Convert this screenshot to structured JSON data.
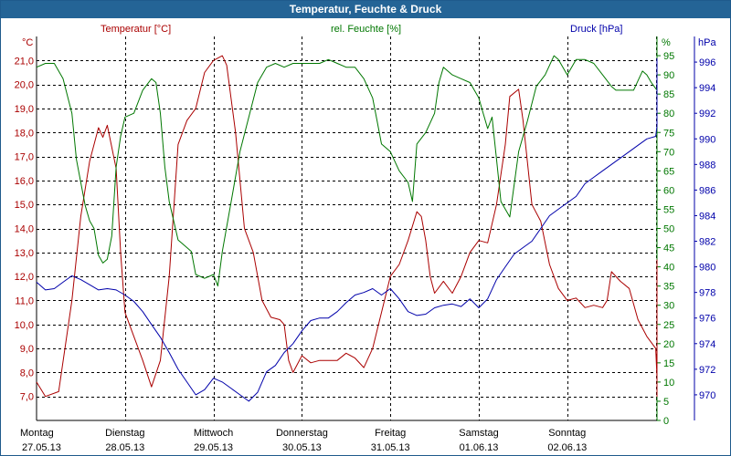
{
  "window": {
    "title": "Temperatur, Feuchte & Druck"
  },
  "chart_data": {
    "type": "line",
    "title": "Temperatur, Feuchte & Druck",
    "grid": true,
    "colors": {
      "temperature": "#aa0000",
      "humidity": "#007700",
      "pressure": "#0000aa",
      "grid": "#000000"
    },
    "days": [
      {
        "name": "Montag",
        "date": "27.05.13"
      },
      {
        "name": "Dienstag",
        "date": "28.05.13"
      },
      {
        "name": "Mittwoch",
        "date": "29.05.13"
      },
      {
        "name": "Donnerstag",
        "date": "30.05.13"
      },
      {
        "name": "Freitag",
        "date": "31.05.13"
      },
      {
        "name": "Samstag",
        "date": "01.06.13"
      },
      {
        "name": "Sonntag",
        "date": "02.06.13"
      }
    ],
    "axes": {
      "temperature": {
        "label": "Temperatur [°C]",
        "unit": "°C",
        "range": [
          6.0,
          22.0
        ],
        "ticks": [
          "7,0",
          "8,0",
          "9,0",
          "10,0",
          "11,0",
          "12,0",
          "13,0",
          "14,0",
          "15,0",
          "16,0",
          "17,0",
          "18,0",
          "19,0",
          "20,0",
          "21,0"
        ]
      },
      "humidity": {
        "label": "rel. Feuchte [%]",
        "unit": "%",
        "range": [
          0,
          100
        ],
        "ticks": [
          "0",
          "5",
          "10",
          "15",
          "20",
          "25",
          "30",
          "35",
          "40",
          "45",
          "50",
          "55",
          "60",
          "65",
          "70",
          "75",
          "80",
          "85",
          "90",
          "95"
        ]
      },
      "pressure": {
        "label": "Druck [hPa]",
        "unit": "hPa",
        "range": [
          968,
          998
        ],
        "ticks": [
          "970",
          "972",
          "974",
          "976",
          "978",
          "980",
          "982",
          "984",
          "986",
          "988",
          "990",
          "992",
          "994",
          "996"
        ]
      }
    },
    "series": [
      {
        "name": "Temperatur [°C]",
        "axis": "temperature",
        "points": [
          [
            0.0,
            7.6
          ],
          [
            0.1,
            7.0
          ],
          [
            0.25,
            7.2
          ],
          [
            0.4,
            11.0
          ],
          [
            0.5,
            14.5
          ],
          [
            0.6,
            16.8
          ],
          [
            0.7,
            18.2
          ],
          [
            0.75,
            17.8
          ],
          [
            0.8,
            18.3
          ],
          [
            0.9,
            16.5
          ],
          [
            0.95,
            13.0
          ],
          [
            1.0,
            10.5
          ],
          [
            1.1,
            9.5
          ],
          [
            1.2,
            8.5
          ],
          [
            1.3,
            7.4
          ],
          [
            1.4,
            8.5
          ],
          [
            1.5,
            12.0
          ],
          [
            1.6,
            17.5
          ],
          [
            1.7,
            18.5
          ],
          [
            1.8,
            19.0
          ],
          [
            1.9,
            20.5
          ],
          [
            2.0,
            21.0
          ],
          [
            2.1,
            21.2
          ],
          [
            2.15,
            20.8
          ],
          [
            2.25,
            18.0
          ],
          [
            2.35,
            14.0
          ],
          [
            2.45,
            13.0
          ],
          [
            2.55,
            11.0
          ],
          [
            2.65,
            10.3
          ],
          [
            2.75,
            10.2
          ],
          [
            2.8,
            10.0
          ],
          [
            2.85,
            8.5
          ],
          [
            2.9,
            8.0
          ],
          [
            3.0,
            8.7
          ],
          [
            3.1,
            8.4
          ],
          [
            3.2,
            8.5
          ],
          [
            3.4,
            8.5
          ],
          [
            3.5,
            8.8
          ],
          [
            3.6,
            8.6
          ],
          [
            3.7,
            8.2
          ],
          [
            3.8,
            9.0
          ],
          [
            3.9,
            10.5
          ],
          [
            4.0,
            12.0
          ],
          [
            4.1,
            12.5
          ],
          [
            4.2,
            13.5
          ],
          [
            4.3,
            14.7
          ],
          [
            4.35,
            14.5
          ],
          [
            4.4,
            13.5
          ],
          [
            4.45,
            12.0
          ],
          [
            4.5,
            11.3
          ],
          [
            4.6,
            11.8
          ],
          [
            4.7,
            11.3
          ],
          [
            4.8,
            12.0
          ],
          [
            4.9,
            13.0
          ],
          [
            5.0,
            13.5
          ],
          [
            5.1,
            13.4
          ],
          [
            5.2,
            15.0
          ],
          [
            5.3,
            17.5
          ],
          [
            5.35,
            19.5
          ],
          [
            5.45,
            19.8
          ],
          [
            5.5,
            18.5
          ],
          [
            5.6,
            15.0
          ],
          [
            5.7,
            14.3
          ],
          [
            5.8,
            12.5
          ],
          [
            5.9,
            11.5
          ],
          [
            6.0,
            11.0
          ],
          [
            6.1,
            11.1
          ],
          [
            6.2,
            10.7
          ],
          [
            6.3,
            10.8
          ],
          [
            6.4,
            10.7
          ],
          [
            6.45,
            11.0
          ],
          [
            6.5,
            12.2
          ],
          [
            6.6,
            11.8
          ],
          [
            6.7,
            11.5
          ],
          [
            6.8,
            10.2
          ],
          [
            6.9,
            9.5
          ],
          [
            7.0,
            9.0
          ],
          [
            7.1,
            7.8
          ],
          [
            7.2,
            7.0
          ],
          [
            7.3,
            7.2
          ],
          [
            7.4,
            8.5
          ],
          [
            7.5,
            10.5
          ],
          [
            7.6,
            14.0
          ],
          [
            7.7,
            16.0
          ],
          [
            7.8,
            16.7
          ],
          [
            7.9,
            15.5
          ],
          [
            8.0,
            13.5
          ],
          [
            8.1,
            11.5
          ],
          [
            8.2,
            10.0
          ]
        ]
      },
      {
        "name": "rel. Feuchte [%]",
        "axis": "humidity",
        "points": [
          [
            0.0,
            92
          ],
          [
            0.1,
            93
          ],
          [
            0.2,
            93
          ],
          [
            0.3,
            89
          ],
          [
            0.4,
            80
          ],
          [
            0.45,
            68
          ],
          [
            0.5,
            62
          ],
          [
            0.55,
            56
          ],
          [
            0.6,
            52
          ],
          [
            0.65,
            50
          ],
          [
            0.7,
            43
          ],
          [
            0.75,
            41
          ],
          [
            0.8,
            42
          ],
          [
            0.85,
            48
          ],
          [
            0.9,
            66
          ],
          [
            0.95,
            74
          ],
          [
            1.0,
            79
          ],
          [
            1.1,
            80
          ],
          [
            1.2,
            86
          ],
          [
            1.3,
            89
          ],
          [
            1.35,
            88
          ],
          [
            1.4,
            80
          ],
          [
            1.45,
            66
          ],
          [
            1.5,
            57
          ],
          [
            1.6,
            47
          ],
          [
            1.7,
            45
          ],
          [
            1.75,
            44
          ],
          [
            1.8,
            38
          ],
          [
            1.9,
            37
          ],
          [
            2.0,
            38
          ],
          [
            2.05,
            35
          ],
          [
            2.1,
            44
          ],
          [
            2.2,
            57
          ],
          [
            2.3,
            70
          ],
          [
            2.4,
            79
          ],
          [
            2.5,
            88
          ],
          [
            2.6,
            92
          ],
          [
            2.7,
            93
          ],
          [
            2.8,
            92
          ],
          [
            2.9,
            93
          ],
          [
            3.0,
            93
          ],
          [
            3.1,
            93
          ],
          [
            3.2,
            93
          ],
          [
            3.3,
            94
          ],
          [
            3.4,
            93
          ],
          [
            3.5,
            92
          ],
          [
            3.6,
            92
          ],
          [
            3.7,
            89
          ],
          [
            3.8,
            84
          ],
          [
            3.85,
            78
          ],
          [
            3.9,
            72
          ],
          [
            4.0,
            70
          ],
          [
            4.1,
            65
          ],
          [
            4.2,
            62
          ],
          [
            4.25,
            57
          ],
          [
            4.3,
            72
          ],
          [
            4.4,
            75
          ],
          [
            4.5,
            80
          ],
          [
            4.55,
            88
          ],
          [
            4.6,
            92
          ],
          [
            4.7,
            90
          ],
          [
            4.8,
            89
          ],
          [
            4.9,
            88
          ],
          [
            5.0,
            84
          ],
          [
            5.05,
            80
          ],
          [
            5.1,
            76
          ],
          [
            5.15,
            79
          ],
          [
            5.2,
            68
          ],
          [
            5.25,
            57
          ],
          [
            5.35,
            53
          ],
          [
            5.45,
            70
          ],
          [
            5.55,
            78
          ],
          [
            5.65,
            87
          ],
          [
            5.75,
            90
          ],
          [
            5.85,
            95
          ],
          [
            5.9,
            94
          ],
          [
            6.0,
            90
          ],
          [
            6.1,
            94
          ],
          [
            6.2,
            94
          ],
          [
            6.3,
            93
          ],
          [
            6.4,
            90
          ],
          [
            6.5,
            87
          ],
          [
            6.55,
            86
          ],
          [
            6.65,
            86
          ],
          [
            6.75,
            86
          ],
          [
            6.85,
            91
          ],
          [
            6.9,
            90
          ],
          [
            6.95,
            88
          ],
          [
            7.05,
            86
          ],
          [
            7.2,
            87
          ],
          [
            7.3,
            82
          ],
          [
            7.4,
            72
          ],
          [
            7.5,
            60
          ],
          [
            7.6,
            48
          ],
          [
            7.7,
            42
          ],
          [
            7.8,
            42
          ],
          [
            7.9,
            48
          ],
          [
            8.0,
            54
          ],
          [
            8.05,
            55
          ],
          [
            8.1,
            55
          ],
          [
            8.15,
            57
          ]
        ]
      },
      {
        "name": "Druck [hPa]",
        "axis": "pressure",
        "points": [
          [
            0.0,
            978.8
          ],
          [
            0.1,
            978.2
          ],
          [
            0.2,
            978.3
          ],
          [
            0.3,
            978.8
          ],
          [
            0.4,
            979.3
          ],
          [
            0.5,
            979.0
          ],
          [
            0.6,
            978.6
          ],
          [
            0.7,
            978.2
          ],
          [
            0.8,
            978.3
          ],
          [
            0.9,
            978.2
          ],
          [
            1.0,
            977.8
          ],
          [
            1.1,
            977.3
          ],
          [
            1.2,
            976.5
          ],
          [
            1.3,
            975.5
          ],
          [
            1.4,
            974.5
          ],
          [
            1.5,
            973.3
          ],
          [
            1.6,
            972.0
          ],
          [
            1.7,
            971.0
          ],
          [
            1.8,
            970.0
          ],
          [
            1.9,
            970.4
          ],
          [
            2.0,
            971.3
          ],
          [
            2.1,
            971.0
          ],
          [
            2.2,
            970.5
          ],
          [
            2.3,
            970.0
          ],
          [
            2.4,
            969.5
          ],
          [
            2.5,
            970.2
          ],
          [
            2.6,
            971.8
          ],
          [
            2.7,
            972.3
          ],
          [
            2.8,
            973.3
          ],
          [
            2.9,
            974.0
          ],
          [
            3.0,
            975.0
          ],
          [
            3.1,
            975.8
          ],
          [
            3.2,
            976.0
          ],
          [
            3.3,
            976.0
          ],
          [
            3.4,
            976.5
          ],
          [
            3.5,
            977.2
          ],
          [
            3.6,
            977.8
          ],
          [
            3.7,
            978.0
          ],
          [
            3.8,
            978.3
          ],
          [
            3.9,
            977.8
          ],
          [
            4.0,
            978.3
          ],
          [
            4.1,
            977.5
          ],
          [
            4.2,
            976.5
          ],
          [
            4.3,
            976.2
          ],
          [
            4.4,
            976.3
          ],
          [
            4.5,
            976.8
          ],
          [
            4.6,
            977.0
          ],
          [
            4.7,
            977.1
          ],
          [
            4.8,
            976.9
          ],
          [
            4.9,
            977.5
          ],
          [
            5.0,
            976.8
          ],
          [
            5.1,
            977.5
          ],
          [
            5.2,
            979.0
          ],
          [
            5.3,
            980.0
          ],
          [
            5.4,
            981.0
          ],
          [
            5.5,
            981.5
          ],
          [
            5.6,
            982.0
          ],
          [
            5.7,
            983.0
          ],
          [
            5.8,
            984.0
          ],
          [
            5.9,
            984.5
          ],
          [
            6.0,
            985.0
          ],
          [
            6.1,
            985.5
          ],
          [
            6.2,
            986.5
          ],
          [
            6.3,
            987.0
          ],
          [
            6.4,
            987.5
          ],
          [
            6.5,
            988.0
          ],
          [
            6.6,
            988.5
          ],
          [
            6.7,
            989.0
          ],
          [
            6.8,
            989.5
          ],
          [
            6.9,
            990.0
          ],
          [
            7.0,
            990.2
          ],
          [
            7.1,
            991.0
          ],
          [
            7.2,
            991.5
          ],
          [
            7.3,
            992.0
          ],
          [
            7.4,
            993.0
          ],
          [
            7.5,
            992.8
          ],
          [
            7.6,
            993.0
          ],
          [
            7.7,
            993.0
          ],
          [
            7.8,
            993.2
          ],
          [
            7.9,
            993.5
          ],
          [
            8.0,
            994.5
          ],
          [
            8.1,
            995.5
          ],
          [
            8.2,
            996.3
          ]
        ]
      }
    ]
  }
}
